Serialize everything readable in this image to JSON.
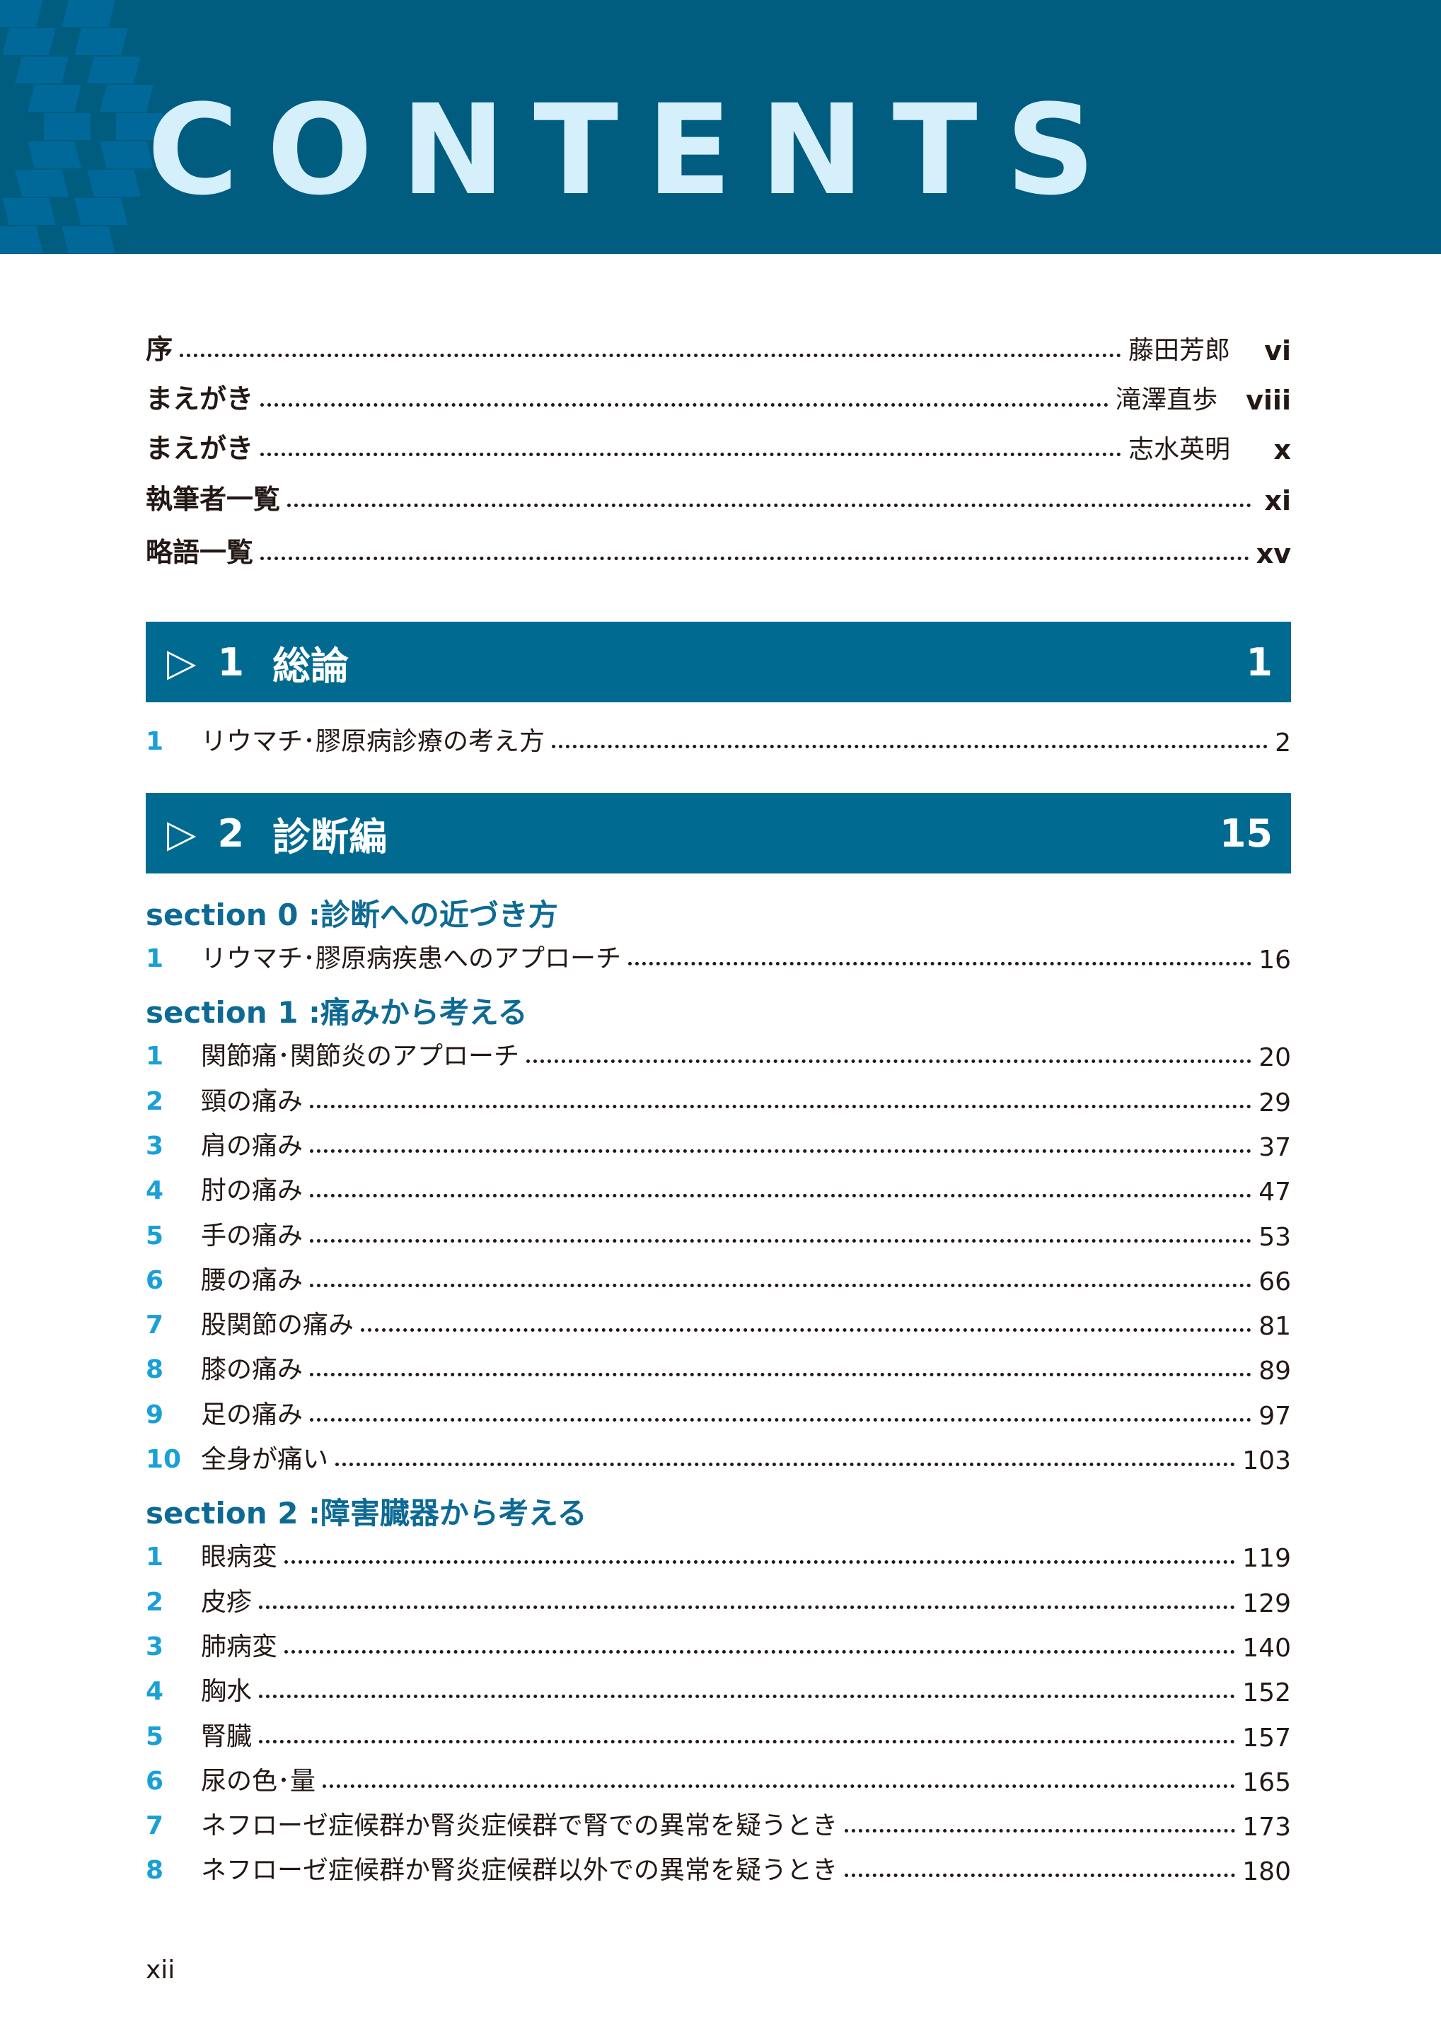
{
  "header": {
    "title": "CONTENTS",
    "color": "#005d80"
  },
  "front_matter": [
    {
      "label": "序",
      "author": "藤田芳郎",
      "page": "vi"
    },
    {
      "label": "まえがき",
      "author": "滝澤直歩",
      "page": "viii"
    },
    {
      "label": "まえがき",
      "author": "志水英明",
      "page": "x"
    },
    {
      "label": "執筆者一覧",
      "author": "",
      "page": "xi"
    },
    {
      "label": "略語一覧",
      "author": "",
      "page": "xv"
    }
  ],
  "chapters": [
    {
      "icon": "triangle-right-icon",
      "marker": "▷",
      "number": "1",
      "title": "総論",
      "page": "1",
      "sections": [
        {
          "title": "",
          "items": [
            {
              "num": "1",
              "label": "リウマチ･膠原病診療の考え方",
              "page": "2"
            }
          ]
        }
      ]
    },
    {
      "icon": "triangle-right-icon",
      "marker": "▷",
      "number": "2",
      "title": "診断編",
      "page": "15",
      "sections": [
        {
          "title": "section 0 :診断への近づき方",
          "items": [
            {
              "num": "1",
              "label": "リウマチ･膠原病疾患へのアプローチ",
              "page": "16"
            }
          ]
        },
        {
          "title": "section 1 :痛みから考える",
          "items": [
            {
              "num": "1",
              "label": "関節痛･関節炎のアプローチ",
              "page": "20"
            },
            {
              "num": "2",
              "label": "頸の痛み",
              "page": "29"
            },
            {
              "num": "3",
              "label": "肩の痛み",
              "page": "37"
            },
            {
              "num": "4",
              "label": "肘の痛み",
              "page": "47"
            },
            {
              "num": "5",
              "label": "手の痛み",
              "page": "53"
            },
            {
              "num": "6",
              "label": "腰の痛み",
              "page": "66"
            },
            {
              "num": "7",
              "label": "股関節の痛み",
              "page": "81"
            },
            {
              "num": "8",
              "label": "膝の痛み",
              "page": "89"
            },
            {
              "num": "9",
              "label": "足の痛み",
              "page": "97"
            },
            {
              "num": "10",
              "label": "全身が痛い",
              "page": "103"
            }
          ]
        },
        {
          "title": "section 2 :障害臓器から考える",
          "items": [
            {
              "num": "1",
              "label": "眼病変",
              "page": "119"
            },
            {
              "num": "2",
              "label": "皮疹",
              "page": "129"
            },
            {
              "num": "3",
              "label": "肺病変",
              "page": "140"
            },
            {
              "num": "4",
              "label": "胸水",
              "page": "152"
            },
            {
              "num": "5",
              "label": "腎臓",
              "page": "157"
            },
            {
              "num": "6",
              "label": "尿の色･量",
              "page": "165"
            },
            {
              "num": "7",
              "label": "ネフローゼ症候群か腎炎症候群で腎での異常を疑うとき",
              "page": "173"
            },
            {
              "num": "8",
              "label": "ネフローゼ症候群か腎炎症候群以外での異常を疑うとき",
              "page": "180"
            }
          ]
        }
      ]
    }
  ],
  "footer": {
    "page_number": "xii"
  },
  "colors": {
    "bar": "#006a91",
    "number_accent": "#1aa0d6",
    "section_title": "#0d6a94"
  }
}
